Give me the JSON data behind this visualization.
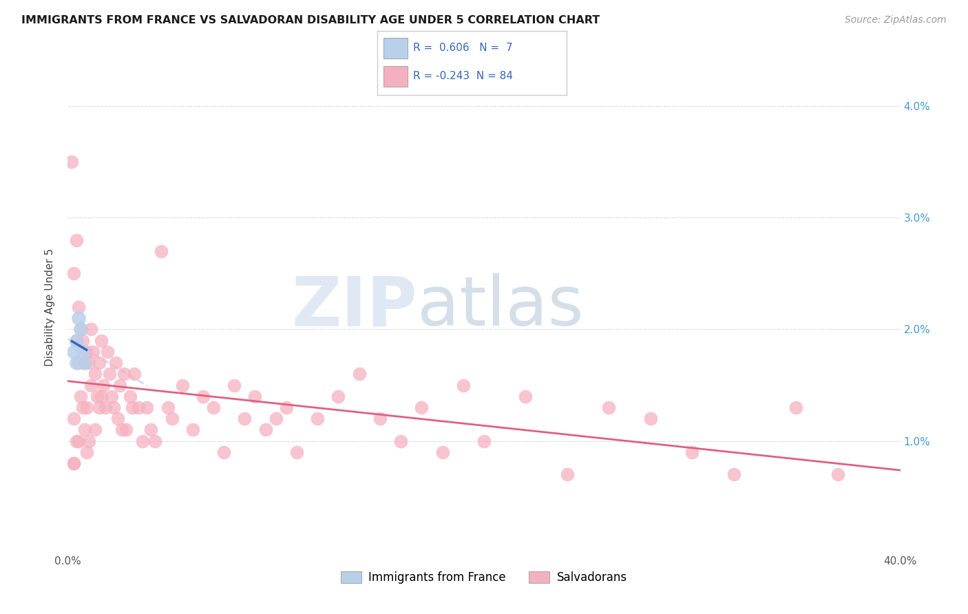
{
  "title": "IMMIGRANTS FROM FRANCE VS SALVADORAN DISABILITY AGE UNDER 5 CORRELATION CHART",
  "source": "Source: ZipAtlas.com",
  "ylabel": "Disability Age Under 5",
  "r_blue": 0.606,
  "n_blue": 7,
  "r_pink": -0.243,
  "n_pink": 84,
  "blue_scatter_color": "#b8d0ea",
  "pink_scatter_color": "#f5b0c0",
  "blue_line_color": "#3366bb",
  "pink_line_color": "#e06080",
  "blue_dashed_color": "#c0d4ee",
  "watermark_color": "#ccd8e8",
  "watermark_text": "ZIPatlas",
  "legend_blue_label": "Immigrants from France",
  "legend_pink_label": "Salvadorans",
  "xlim": [
    0.0,
    0.4
  ],
  "ylim": [
    0.0,
    0.044
  ],
  "ytick_positions": [
    0.0,
    0.01,
    0.02,
    0.03,
    0.04
  ],
  "right_ytick_labels": [
    "",
    "1.0%",
    "2.0%",
    "3.0%",
    "4.0%"
  ],
  "grid_color": "#d8d8d8",
  "blue_x": [
    0.003,
    0.004,
    0.004,
    0.005,
    0.006,
    0.007,
    0.008
  ],
  "blue_y": [
    0.018,
    0.019,
    0.017,
    0.021,
    0.02,
    0.018,
    0.017
  ],
  "pink_x": [
    0.002,
    0.003,
    0.003,
    0.004,
    0.004,
    0.004,
    0.005,
    0.005,
    0.005,
    0.006,
    0.006,
    0.007,
    0.007,
    0.008,
    0.008,
    0.009,
    0.009,
    0.01,
    0.01,
    0.011,
    0.011,
    0.012,
    0.013,
    0.013,
    0.014,
    0.015,
    0.016,
    0.016,
    0.017,
    0.018,
    0.019,
    0.02,
    0.021,
    0.022,
    0.023,
    0.024,
    0.025,
    0.026,
    0.027,
    0.028,
    0.03,
    0.031,
    0.032,
    0.034,
    0.036,
    0.038,
    0.04,
    0.042,
    0.045,
    0.048,
    0.05,
    0.055,
    0.06,
    0.065,
    0.07,
    0.075,
    0.08,
    0.085,
    0.09,
    0.095,
    0.1,
    0.105,
    0.11,
    0.12,
    0.13,
    0.14,
    0.15,
    0.16,
    0.17,
    0.18,
    0.19,
    0.2,
    0.22,
    0.24,
    0.26,
    0.28,
    0.3,
    0.32,
    0.35,
    0.37,
    0.003,
    0.003,
    0.009,
    0.015
  ],
  "pink_y": [
    0.035,
    0.025,
    0.012,
    0.028,
    0.019,
    0.01,
    0.022,
    0.017,
    0.01,
    0.02,
    0.014,
    0.019,
    0.013,
    0.017,
    0.011,
    0.018,
    0.013,
    0.017,
    0.01,
    0.02,
    0.015,
    0.018,
    0.016,
    0.011,
    0.014,
    0.017,
    0.019,
    0.014,
    0.015,
    0.013,
    0.018,
    0.016,
    0.014,
    0.013,
    0.017,
    0.012,
    0.015,
    0.011,
    0.016,
    0.011,
    0.014,
    0.013,
    0.016,
    0.013,
    0.01,
    0.013,
    0.011,
    0.01,
    0.027,
    0.013,
    0.012,
    0.015,
    0.011,
    0.014,
    0.013,
    0.009,
    0.015,
    0.012,
    0.014,
    0.011,
    0.012,
    0.013,
    0.009,
    0.012,
    0.014,
    0.016,
    0.012,
    0.01,
    0.013,
    0.009,
    0.015,
    0.01,
    0.014,
    0.007,
    0.013,
    0.012,
    0.009,
    0.007,
    0.013,
    0.007,
    0.008,
    0.008,
    0.009,
    0.013
  ]
}
